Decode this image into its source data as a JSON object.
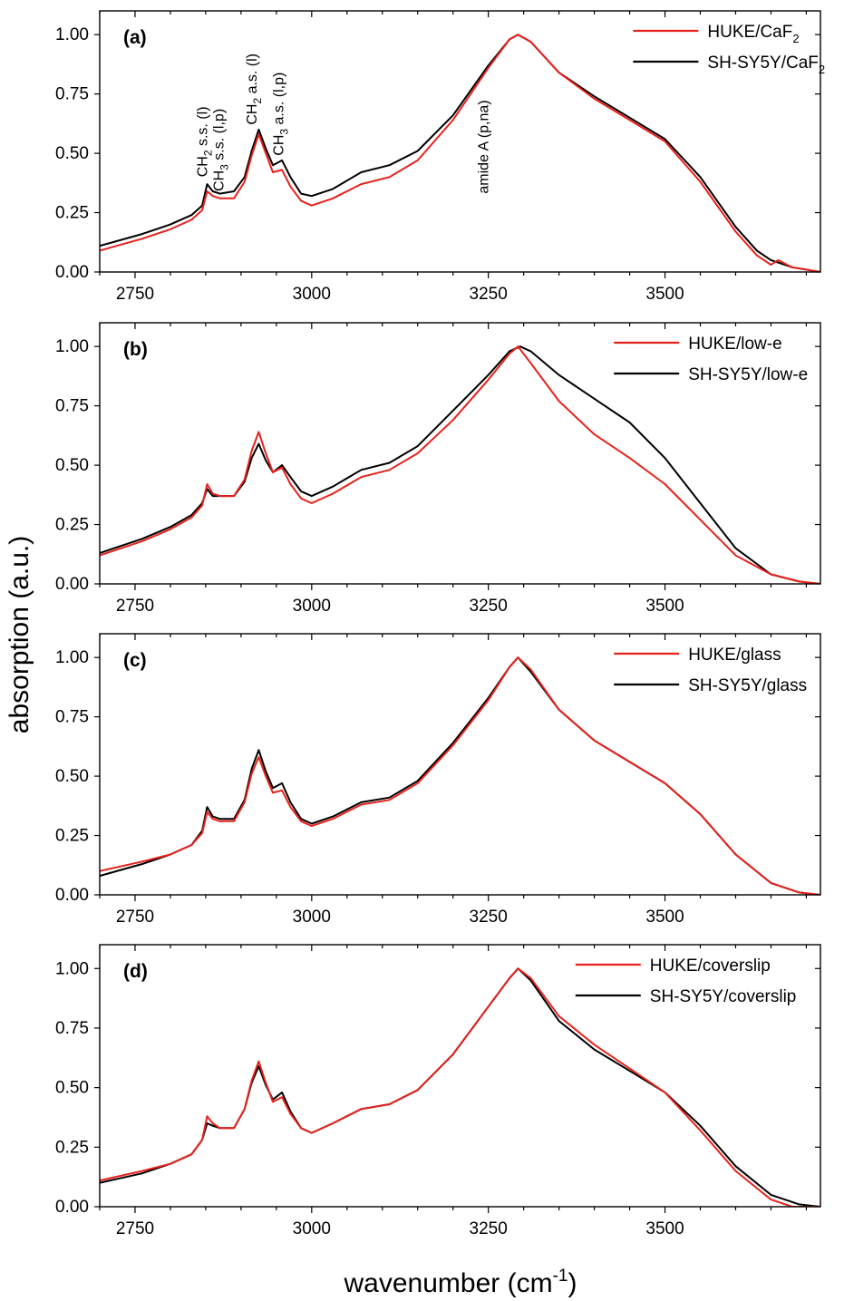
{
  "figure": {
    "ylabel": "absorption (a.u.)",
    "xlabel_main": "wavenumber (cm",
    "xlabel_sup": "-1",
    "xlabel_close": ")"
  },
  "colors": {
    "HUKE": "#e8211b",
    "SH-SY5Y": "#000000"
  },
  "chart_data": [
    {
      "type": "line",
      "panel_label": "(a)",
      "xlim": [
        2700,
        3720
      ],
      "ylim": [
        0,
        1.1
      ],
      "xticks": [
        2750,
        3000,
        3250,
        3500
      ],
      "yticks": [
        0.0,
        0.25,
        0.5,
        0.75,
        1.0
      ],
      "grid": false,
      "legend_position": "top-right",
      "annotations": [
        {
          "main": "CH",
          "sub": "2",
          "rest": " s.s. (l)",
          "x": 2852,
          "y": 0.4
        },
        {
          "main": "CH",
          "sub": "3",
          "rest": " s.s. (l,p)",
          "x": 2875,
          "y": 0.34
        },
        {
          "main": "CH",
          "sub": "2",
          "rest": " a.s. (l)",
          "x": 2922,
          "y": 0.62
        },
        {
          "main": "CH",
          "sub": "3",
          "rest": " a.s. (l,p)",
          "x": 2960,
          "y": 0.49
        },
        {
          "main": "amide A (p,na)",
          "sub": "",
          "rest": "",
          "x": 3250,
          "y": 0.33
        }
      ],
      "series": [
        {
          "name": "HUKE/CaF",
          "name_sub": "2",
          "color_key": "HUKE",
          "x": [
            2700,
            2760,
            2800,
            2830,
            2845,
            2852,
            2860,
            2870,
            2890,
            2905,
            2915,
            2925,
            2935,
            2945,
            2958,
            2970,
            2985,
            3000,
            3030,
            3070,
            3110,
            3150,
            3200,
            3250,
            3280,
            3292,
            3310,
            3350,
            3400,
            3450,
            3500,
            3550,
            3600,
            3630,
            3650,
            3660,
            3680,
            3700,
            3720
          ],
          "y": [
            0.09,
            0.14,
            0.18,
            0.22,
            0.26,
            0.34,
            0.32,
            0.31,
            0.31,
            0.38,
            0.49,
            0.58,
            0.5,
            0.42,
            0.43,
            0.36,
            0.3,
            0.28,
            0.31,
            0.37,
            0.4,
            0.47,
            0.64,
            0.86,
            0.98,
            1.0,
            0.97,
            0.84,
            0.73,
            0.64,
            0.55,
            0.38,
            0.17,
            0.07,
            0.03,
            0.05,
            0.02,
            0.01,
            0.0
          ]
        },
        {
          "name": "SH-SY5Y/CaF",
          "name_sub": "2",
          "color_key": "SH-SY5Y",
          "x": [
            2700,
            2760,
            2800,
            2830,
            2845,
            2852,
            2860,
            2870,
            2890,
            2905,
            2915,
            2925,
            2935,
            2945,
            2958,
            2970,
            2985,
            3000,
            3030,
            3070,
            3110,
            3150,
            3200,
            3250,
            3280,
            3292,
            3310,
            3350,
            3400,
            3450,
            3500,
            3550,
            3600,
            3630,
            3650,
            3660,
            3680,
            3700,
            3720
          ],
          "y": [
            0.11,
            0.16,
            0.2,
            0.24,
            0.28,
            0.37,
            0.34,
            0.33,
            0.34,
            0.4,
            0.51,
            0.6,
            0.52,
            0.45,
            0.47,
            0.4,
            0.33,
            0.32,
            0.35,
            0.42,
            0.45,
            0.51,
            0.66,
            0.87,
            0.98,
            1.0,
            0.97,
            0.84,
            0.74,
            0.65,
            0.56,
            0.4,
            0.19,
            0.09,
            0.05,
            0.04,
            0.02,
            0.01,
            0.0
          ]
        }
      ]
    },
    {
      "type": "line",
      "panel_label": "(b)",
      "xlim": [
        2700,
        3720
      ],
      "ylim": [
        0,
        1.1
      ],
      "xticks": [
        2750,
        3000,
        3250,
        3500
      ],
      "yticks": [
        0.0,
        0.25,
        0.5,
        0.75,
        1.0
      ],
      "grid": false,
      "legend_position": "top-right",
      "annotations": [],
      "series": [
        {
          "name": "HUKE/low-e",
          "name_sub": "",
          "color_key": "HUKE",
          "x": [
            2700,
            2760,
            2800,
            2830,
            2845,
            2852,
            2860,
            2870,
            2890,
            2905,
            2915,
            2925,
            2935,
            2945,
            2958,
            2970,
            2985,
            3000,
            3030,
            3070,
            3110,
            3150,
            3200,
            3250,
            3280,
            3292,
            3310,
            3350,
            3400,
            3450,
            3500,
            3550,
            3600,
            3650,
            3690,
            3720
          ],
          "y": [
            0.12,
            0.18,
            0.23,
            0.28,
            0.33,
            0.42,
            0.38,
            0.37,
            0.37,
            0.44,
            0.56,
            0.64,
            0.55,
            0.47,
            0.49,
            0.42,
            0.36,
            0.34,
            0.38,
            0.45,
            0.48,
            0.55,
            0.69,
            0.86,
            0.97,
            1.0,
            0.93,
            0.77,
            0.63,
            0.53,
            0.42,
            0.27,
            0.12,
            0.04,
            0.01,
            0.0
          ]
        },
        {
          "name": "SH-SY5Y/low-e",
          "name_sub": "",
          "color_key": "SH-SY5Y",
          "x": [
            2700,
            2760,
            2800,
            2830,
            2845,
            2852,
            2860,
            2870,
            2890,
            2905,
            2915,
            2925,
            2935,
            2945,
            2958,
            2970,
            2985,
            3000,
            3030,
            3070,
            3110,
            3150,
            3200,
            3250,
            3280,
            3295,
            3310,
            3350,
            3400,
            3450,
            3500,
            3550,
            3600,
            3650,
            3690,
            3720
          ],
          "y": [
            0.13,
            0.19,
            0.24,
            0.29,
            0.34,
            0.4,
            0.37,
            0.37,
            0.37,
            0.43,
            0.53,
            0.59,
            0.52,
            0.47,
            0.5,
            0.45,
            0.39,
            0.37,
            0.41,
            0.48,
            0.51,
            0.58,
            0.73,
            0.88,
            0.98,
            1.0,
            0.98,
            0.88,
            0.78,
            0.68,
            0.53,
            0.34,
            0.15,
            0.04,
            0.01,
            0.0
          ]
        }
      ]
    },
    {
      "type": "line",
      "panel_label": "(c)",
      "xlim": [
        2700,
        3720
      ],
      "ylim": [
        0,
        1.1
      ],
      "xticks": [
        2750,
        3000,
        3250,
        3500
      ],
      "yticks": [
        0.0,
        0.25,
        0.5,
        0.75,
        1.0
      ],
      "grid": false,
      "legend_position": "top-right",
      "annotations": [],
      "series": [
        {
          "name": "HUKE/glass",
          "name_sub": "",
          "color_key": "HUKE",
          "x": [
            2700,
            2760,
            2800,
            2830,
            2845,
            2852,
            2860,
            2870,
            2890,
            2905,
            2915,
            2925,
            2935,
            2945,
            2958,
            2970,
            2985,
            3000,
            3030,
            3070,
            3110,
            3150,
            3200,
            3250,
            3280,
            3292,
            3310,
            3350,
            3400,
            3450,
            3500,
            3550,
            3600,
            3650,
            3690,
            3720
          ],
          "y": [
            0.1,
            0.14,
            0.17,
            0.21,
            0.26,
            0.35,
            0.32,
            0.31,
            0.31,
            0.39,
            0.51,
            0.58,
            0.5,
            0.43,
            0.44,
            0.37,
            0.31,
            0.29,
            0.32,
            0.38,
            0.4,
            0.47,
            0.63,
            0.82,
            0.96,
            1.0,
            0.95,
            0.78,
            0.65,
            0.56,
            0.47,
            0.34,
            0.17,
            0.05,
            0.01,
            0.0
          ]
        },
        {
          "name": "SH-SY5Y/glass",
          "name_sub": "",
          "color_key": "SH-SY5Y",
          "x": [
            2700,
            2760,
            2800,
            2830,
            2845,
            2852,
            2860,
            2870,
            2890,
            2905,
            2915,
            2925,
            2935,
            2945,
            2958,
            2970,
            2985,
            3000,
            3030,
            3070,
            3110,
            3150,
            3200,
            3250,
            3280,
            3292,
            3310,
            3350,
            3400,
            3450,
            3500,
            3550,
            3600,
            3650,
            3690,
            3720
          ],
          "y": [
            0.08,
            0.13,
            0.17,
            0.21,
            0.27,
            0.37,
            0.33,
            0.32,
            0.32,
            0.4,
            0.53,
            0.61,
            0.52,
            0.45,
            0.47,
            0.39,
            0.32,
            0.3,
            0.33,
            0.39,
            0.41,
            0.48,
            0.64,
            0.83,
            0.96,
            1.0,
            0.94,
            0.78,
            0.65,
            0.56,
            0.47,
            0.34,
            0.17,
            0.05,
            0.01,
            0.0
          ]
        }
      ]
    },
    {
      "type": "line",
      "panel_label": "(d)",
      "xlim": [
        2700,
        3720
      ],
      "ylim": [
        0,
        1.1
      ],
      "xticks": [
        2750,
        3000,
        3250,
        3500
      ],
      "yticks": [
        0.0,
        0.25,
        0.5,
        0.75,
        1.0
      ],
      "grid": false,
      "legend_position": "top-right",
      "annotations": [],
      "series": [
        {
          "name": "HUKE/coverslip",
          "name_sub": "",
          "color_key": "HUKE",
          "x": [
            2700,
            2760,
            2800,
            2830,
            2845,
            2852,
            2860,
            2870,
            2890,
            2905,
            2915,
            2925,
            2935,
            2945,
            2958,
            2970,
            2985,
            3000,
            3030,
            3070,
            3110,
            3150,
            3200,
            3250,
            3280,
            3292,
            3310,
            3350,
            3400,
            3450,
            3500,
            3550,
            3600,
            3650,
            3680,
            3720
          ],
          "y": [
            0.11,
            0.15,
            0.18,
            0.22,
            0.28,
            0.38,
            0.35,
            0.33,
            0.33,
            0.41,
            0.53,
            0.61,
            0.52,
            0.44,
            0.46,
            0.39,
            0.33,
            0.31,
            0.35,
            0.41,
            0.43,
            0.49,
            0.64,
            0.84,
            0.96,
            1.0,
            0.96,
            0.8,
            0.68,
            0.58,
            0.48,
            0.32,
            0.15,
            0.03,
            0.0,
            0.0
          ]
        },
        {
          "name": "SH-SY5Y/coverslip",
          "name_sub": "",
          "color_key": "SH-SY5Y",
          "x": [
            2700,
            2760,
            2800,
            2830,
            2845,
            2852,
            2860,
            2870,
            2890,
            2905,
            2915,
            2925,
            2935,
            2945,
            2958,
            2970,
            2985,
            3000,
            3030,
            3070,
            3110,
            3150,
            3200,
            3250,
            3280,
            3292,
            3310,
            3350,
            3400,
            3450,
            3500,
            3550,
            3600,
            3650,
            3690,
            3720
          ],
          "y": [
            0.1,
            0.14,
            0.18,
            0.22,
            0.28,
            0.35,
            0.34,
            0.33,
            0.33,
            0.41,
            0.52,
            0.59,
            0.51,
            0.45,
            0.48,
            0.4,
            0.33,
            0.31,
            0.35,
            0.41,
            0.43,
            0.49,
            0.64,
            0.84,
            0.96,
            1.0,
            0.95,
            0.78,
            0.66,
            0.57,
            0.48,
            0.34,
            0.17,
            0.05,
            0.01,
            0.0
          ]
        }
      ]
    }
  ]
}
